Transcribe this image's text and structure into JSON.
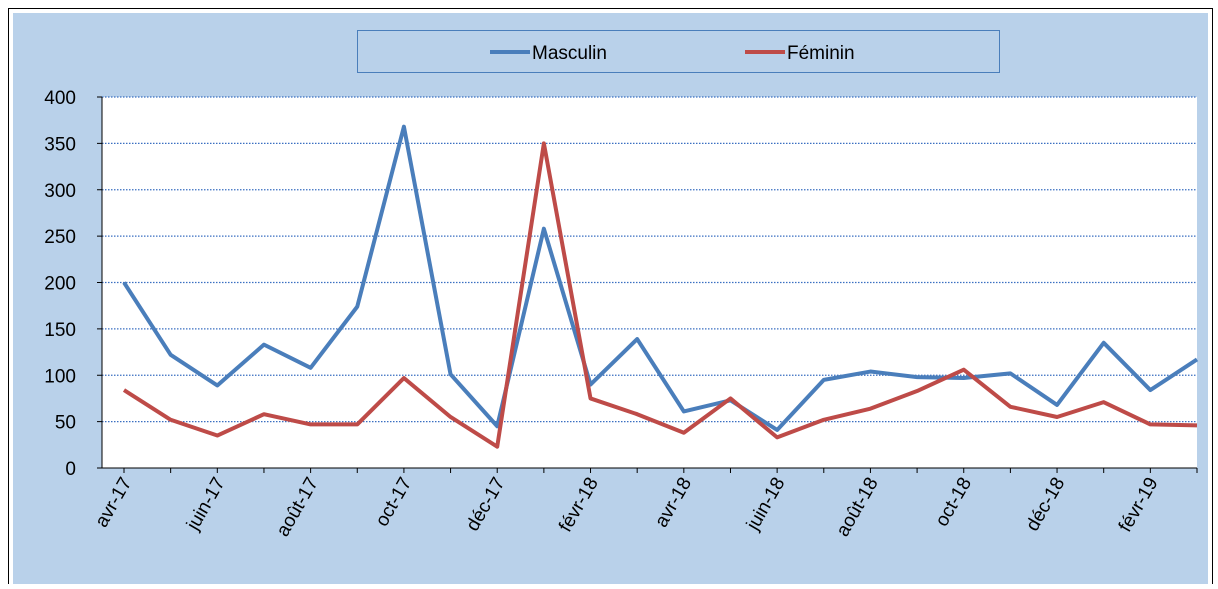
{
  "chart_data": {
    "type": "line",
    "categories": [
      "avr-17",
      null,
      "juin-17",
      null,
      "août-17",
      null,
      "oct-17",
      null,
      "déc-17",
      null,
      "févr-18",
      null,
      "avr-18",
      null,
      "juin-18",
      null,
      "août-18",
      null,
      "oct-18",
      null,
      "déc-18",
      null,
      "févr-19",
      null
    ],
    "series": [
      {
        "name": "Masculin",
        "color": "#4a7ebb",
        "values": [
          200,
          122,
          89,
          133,
          108,
          174,
          368,
          101,
          45,
          258,
          90,
          139,
          61,
          73,
          41,
          95,
          104,
          98,
          97,
          102,
          68,
          135,
          84,
          117
        ]
      },
      {
        "name": "Féminin",
        "color": "#be4b48",
        "values": [
          84,
          52,
          35,
          58,
          47,
          47,
          97,
          55,
          23,
          350,
          75,
          58,
          38,
          75,
          33,
          52,
          64,
          83,
          106,
          66,
          55,
          71,
          47,
          46
        ]
      }
    ],
    "ylim": [
      0,
      400
    ],
    "yticks": [
      0,
      50,
      100,
      150,
      200,
      250,
      300,
      350,
      400
    ],
    "grid": true,
    "legend": "top"
  }
}
